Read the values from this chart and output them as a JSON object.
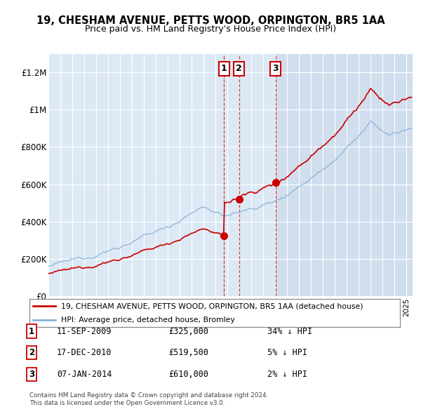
{
  "title": "19, CHESHAM AVENUE, PETTS WOOD, ORPINGTON, BR5 1AA",
  "subtitle": "Price paid vs. HM Land Registry's House Price Index (HPI)",
  "legend_line1": "19, CHESHAM AVENUE, PETTS WOOD, ORPINGTON, BR5 1AA (detached house)",
  "legend_line2": "HPI: Average price, detached house, Bromley",
  "footnote1": "Contains HM Land Registry data © Crown copyright and database right 2024.",
  "footnote2": "This data is licensed under the Open Government Licence v3.0.",
  "transactions": [
    {
      "num": 1,
      "date": "11-SEP-2009",
      "price": 325000,
      "hpi_pct": "34% ↓ HPI",
      "year": 2009.7
    },
    {
      "num": 2,
      "date": "17-DEC-2010",
      "price": 519500,
      "hpi_pct": "5% ↓ HPI",
      "year": 2010.96
    },
    {
      "num": 3,
      "date": "07-JAN-2014",
      "price": 610000,
      "hpi_pct": "2% ↓ HPI",
      "year": 2014.03
    }
  ],
  "xlim": [
    1995,
    2025.5
  ],
  "ylim": [
    0,
    1300000
  ],
  "yticks": [
    0,
    200000,
    400000,
    600000,
    800000,
    1000000,
    1200000
  ],
  "ytick_labels": [
    "£0",
    "£200K",
    "£400K",
    "£600K",
    "£800K",
    "£1M",
    "£1.2M"
  ],
  "plot_bg": "#dce9f5",
  "grid_color": "#ffffff",
  "hpi_color": "#8ab4d8",
  "price_color": "#cc0000",
  "dashed_line_color": "#cc0000",
  "highlight_shade": "#c8d8ea",
  "transaction_marker_color": "#cc0000",
  "fig_bg": "#ffffff"
}
